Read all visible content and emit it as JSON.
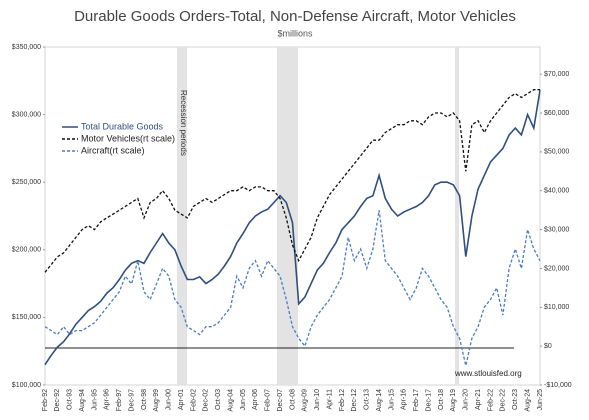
{
  "chart_data": {
    "type": "line",
    "title": "Durable Goods Orders-Total, Non-Defense Aircraft, Motor Vehicles",
    "subtitle": "$millions",
    "annotations": [
      "Recession periods",
      "www.stlouisfed.org"
    ],
    "categories": [
      "Feb-92",
      null,
      "Dec-92",
      null,
      "Oct-93",
      null,
      "Aug-94",
      null,
      "Jun-95",
      null,
      "Apr-96",
      null,
      "Feb-97",
      null,
      "Dec-97",
      null,
      "Oct-98",
      null,
      "Aug-99",
      null,
      "Jun-00",
      null,
      "Apr-01",
      null,
      "Feb-02",
      null,
      "Dec-02",
      null,
      "Oct-03",
      null,
      "Aug-04",
      null,
      "Jun-05",
      null,
      "Apr-06",
      null,
      "Feb-07",
      null,
      "Dec-07",
      null,
      "Oct-08",
      null,
      "Aug-09",
      null,
      "Jun-10",
      null,
      "Apr-11",
      null,
      "Feb-12",
      null,
      "Dec-12",
      null,
      "Oct-13",
      null,
      "Aug-14",
      null,
      "Jun-15",
      null,
      "Apr-16",
      null,
      "Feb-17",
      null,
      "Dec-17",
      null,
      "Oct-18",
      null,
      "Aug-19",
      null,
      "Jun-20",
      null,
      "Apr-21",
      null,
      "Feb-22",
      null,
      "Dec-22",
      null,
      "Oct-23",
      null,
      "Aug-24",
      null,
      "Jun-25"
    ],
    "series": [
      {
        "name": "Total Durable Goods",
        "color": "#2e4f7f",
        "dash": false,
        "values": [
          115000,
          122000,
          128000,
          132000,
          138000,
          145000,
          150000,
          155000,
          158000,
          162000,
          168000,
          172000,
          178000,
          185000,
          190000,
          192000,
          190000,
          198000,
          205000,
          212000,
          205000,
          200000,
          188000,
          178000,
          178000,
          180000,
          175000,
          178000,
          182000,
          188000,
          195000,
          205000,
          212000,
          220000,
          225000,
          228000,
          230000,
          235000,
          240000,
          235000,
          220000,
          160000,
          165000,
          175000,
          185000,
          190000,
          198000,
          205000,
          215000,
          220000,
          225000,
          232000,
          238000,
          240000,
          255000,
          238000,
          230000,
          225000,
          228000,
          230000,
          232000,
          235000,
          240000,
          248000,
          250000,
          250000,
          248000,
          240000,
          195000,
          225000,
          245000,
          255000,
          265000,
          270000,
          275000,
          285000,
          290000,
          285000,
          300000,
          290000,
          318000
        ]
      },
      {
        "name": "Motor Vehicles(rt scale)",
        "color": "#111111",
        "dash": true,
        "axis": "y2",
        "values": [
          19000,
          21000,
          23000,
          24000,
          26000,
          28000,
          30000,
          31000,
          30000,
          32000,
          33000,
          34000,
          35000,
          36000,
          37000,
          38000,
          33000,
          37000,
          38000,
          40000,
          38000,
          35000,
          34000,
          33000,
          36000,
          37000,
          38000,
          37000,
          38000,
          39000,
          40000,
          40000,
          41000,
          40000,
          41000,
          41000,
          40000,
          40000,
          38000,
          33000,
          26000,
          22000,
          25000,
          28000,
          33000,
          36000,
          39000,
          41000,
          43000,
          45000,
          47000,
          49000,
          51000,
          53000,
          53000,
          55000,
          56000,
          57000,
          57000,
          58000,
          58000,
          57000,
          59000,
          60000,
          60000,
          59000,
          60000,
          58000,
          45000,
          57000,
          58000,
          55000,
          58000,
          60000,
          62000,
          64000,
          65000,
          64000,
          65000,
          66000,
          66000
        ]
      },
      {
        "name": "Aircraft(rt scale)",
        "color": "#4a7cc0",
        "dash": true,
        "axis": "y2",
        "values": [
          5000,
          4000,
          3000,
          5000,
          3000,
          4000,
          4000,
          5000,
          6000,
          8000,
          10000,
          12000,
          14000,
          18000,
          16000,
          22000,
          14000,
          12000,
          16000,
          20000,
          18000,
          12000,
          10000,
          5000,
          4000,
          3000,
          5000,
          5000,
          6000,
          8000,
          10000,
          18000,
          15000,
          20000,
          22000,
          18000,
          22000,
          20000,
          18000,
          12000,
          5000,
          2000,
          0,
          5000,
          8000,
          10000,
          12000,
          15000,
          18000,
          28000,
          22000,
          25000,
          20000,
          25000,
          35000,
          22000,
          20000,
          18000,
          15000,
          12000,
          15000,
          20000,
          18000,
          15000,
          12000,
          10000,
          5000,
          2000,
          -5000,
          2000,
          5000,
          10000,
          12000,
          15000,
          8000,
          20000,
          25000,
          20000,
          30000,
          25000,
          22000
        ]
      }
    ],
    "ylim": [
      100000,
      350000
    ],
    "yticks": [
      {
        "value": 100000,
        "label": "$100,000"
      },
      {
        "value": 150000,
        "label": "$150,000"
      },
      {
        "value": 200000,
        "label": "$200,000"
      },
      {
        "value": 250000,
        "label": "$250,000"
      },
      {
        "value": 300000,
        "label": "$300,000"
      },
      {
        "value": 350000,
        "label": "$350,000"
      }
    ],
    "y2lim": [
      -10000,
      77000
    ],
    "y2ticks": [
      {
        "value": -10000,
        "label": "-$10,000"
      },
      {
        "value": 0,
        "label": "$0"
      },
      {
        "value": 10000,
        "label": "$10,000"
      },
      {
        "value": 20000,
        "label": "$20,000"
      },
      {
        "value": 30000,
        "label": "$30,000"
      },
      {
        "value": 40000,
        "label": "$40,000"
      },
      {
        "value": 50000,
        "label": "$50,000"
      },
      {
        "value": 60000,
        "label": "$60,000"
      },
      {
        "value": 70000,
        "label": "$70,000"
      }
    ],
    "legend": "upper left"
  }
}
